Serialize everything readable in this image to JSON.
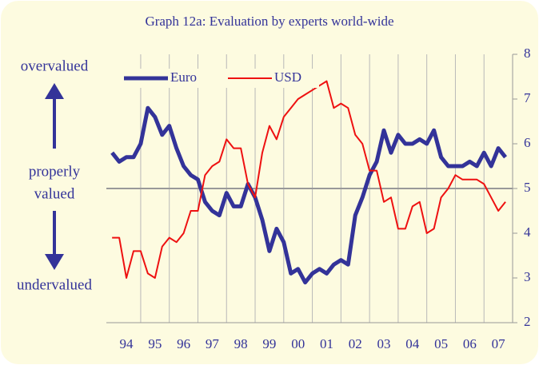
{
  "chart_data": {
    "type": "line",
    "title": "Graph 12a: Evaluation by experts world-wide",
    "annotations": [
      "overvalued",
      "properly",
      "valued",
      "undervalued"
    ],
    "x": [
      1994,
      1994.25,
      1994.5,
      1994.75,
      1995,
      1995.25,
      1995.5,
      1995.75,
      1996,
      1996.25,
      1996.5,
      1996.75,
      1997,
      1997.25,
      1997.5,
      1997.75,
      1998,
      1998.25,
      1998.5,
      1998.75,
      1999,
      1999.25,
      1999.5,
      1999.75,
      2000,
      2000.25,
      2000.5,
      2000.75,
      2001,
      2001.25,
      2001.5,
      2001.75,
      2002,
      2002.25,
      2002.5,
      2002.75,
      2003,
      2003.25,
      2003.5,
      2003.75,
      2004,
      2004.25,
      2004.5,
      2004.75,
      2005,
      2005.25,
      2005.5,
      2005.75,
      2006,
      2006.25,
      2006.5,
      2006.75,
      2007,
      2007.25,
      2007.5,
      2007.75
    ],
    "series": [
      {
        "name": "Euro",
        "color": "#333399",
        "values": [
          5.8,
          5.6,
          5.7,
          5.7,
          6.0,
          6.8,
          6.6,
          6.2,
          6.4,
          5.9,
          5.5,
          5.3,
          5.2,
          4.7,
          4.5,
          4.4,
          4.9,
          4.6,
          4.6,
          5.1,
          4.8,
          4.3,
          3.6,
          4.1,
          3.8,
          3.1,
          3.2,
          2.9,
          3.1,
          3.2,
          3.1,
          3.3,
          3.4,
          3.3,
          4.4,
          4.8,
          5.3,
          5.6,
          6.3,
          5.8,
          6.2,
          6.0,
          6.0,
          6.1,
          6.0,
          6.3,
          5.7,
          5.5,
          5.5,
          5.5,
          5.6,
          5.5,
          5.8,
          5.5,
          5.9,
          5.7
        ]
      },
      {
        "name": "USD",
        "color": "#ee1111",
        "values": [
          3.9,
          3.9,
          3.0,
          3.6,
          3.6,
          3.1,
          3.0,
          3.7,
          3.9,
          3.8,
          4.0,
          4.5,
          4.5,
          5.3,
          5.5,
          5.6,
          6.1,
          5.9,
          5.9,
          5.1,
          4.8,
          5.8,
          6.4,
          6.1,
          6.6,
          6.8,
          7.0,
          7.1,
          7.2,
          7.3,
          7.4,
          6.8,
          6.9,
          6.8,
          6.2,
          6.0,
          5.4,
          5.4,
          4.7,
          4.8,
          4.1,
          4.1,
          4.6,
          4.7,
          4.0,
          4.1,
          4.8,
          5.0,
          5.3,
          5.2,
          5.2,
          5.2,
          5.1,
          4.8,
          4.5,
          4.7
        ]
      }
    ],
    "xlim": [
      1993.8,
      2008
    ],
    "xticks": [
      {
        "value": 1994.5,
        "label": "94"
      },
      {
        "value": 1995.5,
        "label": "95"
      },
      {
        "value": 1996.5,
        "label": "96"
      },
      {
        "value": 1997.5,
        "label": "97"
      },
      {
        "value": 1998.5,
        "label": "98"
      },
      {
        "value": 1999.5,
        "label": "99"
      },
      {
        "value": 2000.5,
        "label": "00"
      },
      {
        "value": 2001.5,
        "label": "01"
      },
      {
        "value": 2002.5,
        "label": "02"
      },
      {
        "value": 2003.5,
        "label": "03"
      },
      {
        "value": 2004.5,
        "label": "04"
      },
      {
        "value": 2005.5,
        "label": "05"
      },
      {
        "value": 2006.5,
        "label": "06"
      },
      {
        "value": 2007.5,
        "label": "07"
      }
    ],
    "xgrid": [
      1995,
      1996,
      1997,
      1998,
      1999,
      2000,
      2001,
      2002,
      2003,
      2004,
      2005,
      2006,
      2007
    ],
    "ylim": [
      2,
      8
    ],
    "yticks": [
      2,
      3,
      4,
      5,
      6,
      7,
      8
    ],
    "reference_line": 5,
    "legend": "top-left"
  }
}
